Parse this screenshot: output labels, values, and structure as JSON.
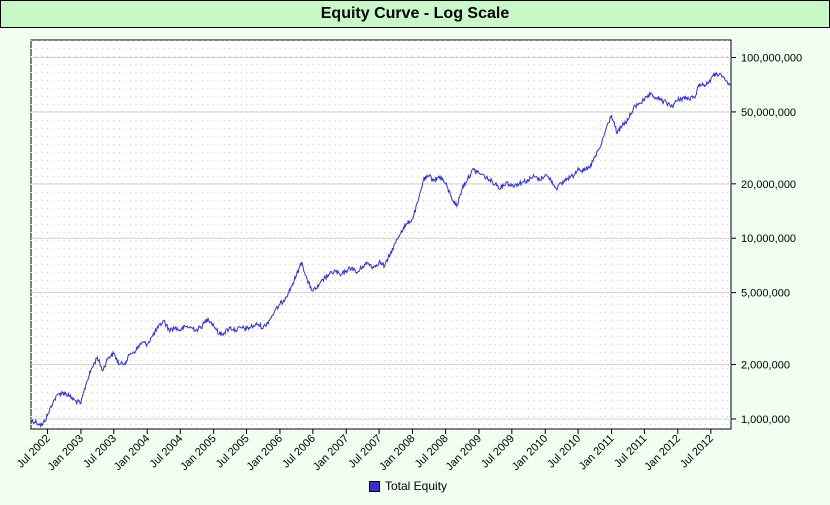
{
  "chart_data": {
    "type": "line",
    "title": "Equity Curve - Log Scale",
    "xlabel": "",
    "ylabel": "",
    "y_scale": "log",
    "ylim": [
      880000,
      125000000
    ],
    "xlim": [
      "2002-04-01",
      "2012-10-20"
    ],
    "grid": true,
    "legend_position": "bottom",
    "colors": {
      "line": "#3333cc",
      "plot_bg": "#ffffff",
      "page_bg": "#f0fff0",
      "title_bg": "#c8f8c8"
    },
    "y_ticks": [
      {
        "value": 1000000,
        "label": "1,000,000"
      },
      {
        "value": 2000000,
        "label": "2,000,000"
      },
      {
        "value": 5000000,
        "label": "5,000,000"
      },
      {
        "value": 10000000,
        "label": "10,000,000"
      },
      {
        "value": 20000000,
        "label": "20,000,000"
      },
      {
        "value": 50000000,
        "label": "50,000,000"
      },
      {
        "value": 100000000,
        "label": "100,000,000"
      }
    ],
    "x_ticks": [
      {
        "date": "2002-07-01",
        "label": "Jul 2002"
      },
      {
        "date": "2003-01-01",
        "label": "Jan 2003"
      },
      {
        "date": "2003-07-01",
        "label": "Jul 2003"
      },
      {
        "date": "2004-01-01",
        "label": "Jan 2004"
      },
      {
        "date": "2004-07-01",
        "label": "Jul 2004"
      },
      {
        "date": "2005-01-01",
        "label": "Jan 2005"
      },
      {
        "date": "2005-07-01",
        "label": "Jul 2005"
      },
      {
        "date": "2006-01-01",
        "label": "Jan 2006"
      },
      {
        "date": "2006-07-01",
        "label": "Jul 2006"
      },
      {
        "date": "2007-01-01",
        "label": "Jan 2007"
      },
      {
        "date": "2007-07-01",
        "label": "Jul 2007"
      },
      {
        "date": "2008-01-01",
        "label": "Jan 2008"
      },
      {
        "date": "2008-07-01",
        "label": "Jul 2008"
      },
      {
        "date": "2009-01-01",
        "label": "Jan 2009"
      },
      {
        "date": "2009-07-01",
        "label": "Jul 2009"
      },
      {
        "date": "2010-01-01",
        "label": "Jan 2010"
      },
      {
        "date": "2010-07-01",
        "label": "Jul 2010"
      },
      {
        "date": "2011-01-01",
        "label": "Jan 2011"
      },
      {
        "date": "2011-07-01",
        "label": "Jul 2011"
      },
      {
        "date": "2012-01-01",
        "label": "Jan 2012"
      },
      {
        "date": "2012-07-01",
        "label": "Jul 2012"
      }
    ],
    "series": [
      {
        "name": "Total Equity",
        "points": [
          [
            "2002-04-01",
            980000
          ],
          [
            "2002-05-01",
            960000
          ],
          [
            "2002-06-01",
            920000
          ],
          [
            "2002-07-01",
            1050000
          ],
          [
            "2002-08-01",
            1250000
          ],
          [
            "2002-09-01",
            1380000
          ],
          [
            "2002-10-01",
            1400000
          ],
          [
            "2002-11-01",
            1330000
          ],
          [
            "2002-12-01",
            1260000
          ],
          [
            "2003-01-01",
            1220000
          ],
          [
            "2003-02-01",
            1600000
          ],
          [
            "2003-03-01",
            1900000
          ],
          [
            "2003-04-01",
            2200000
          ],
          [
            "2003-05-01",
            1850000
          ],
          [
            "2003-06-01",
            2200000
          ],
          [
            "2003-07-01",
            2300000
          ],
          [
            "2003-08-01",
            2000000
          ],
          [
            "2003-09-01",
            2050000
          ],
          [
            "2003-10-01",
            2300000
          ],
          [
            "2003-11-01",
            2400000
          ],
          [
            "2003-12-01",
            2650000
          ],
          [
            "2004-01-01",
            2600000
          ],
          [
            "2004-02-01",
            2900000
          ],
          [
            "2004-03-01",
            3200000
          ],
          [
            "2004-04-01",
            3500000
          ],
          [
            "2004-05-01",
            3100000
          ],
          [
            "2004-06-01",
            3200000
          ],
          [
            "2004-07-01",
            3100000
          ],
          [
            "2004-08-01",
            3250000
          ],
          [
            "2004-09-01",
            3200000
          ],
          [
            "2004-10-01",
            3100000
          ],
          [
            "2004-11-01",
            3300000
          ],
          [
            "2004-12-01",
            3600000
          ],
          [
            "2005-01-01",
            3300000
          ],
          [
            "2005-02-01",
            2950000
          ],
          [
            "2005-03-01",
            3000000
          ],
          [
            "2005-04-01",
            3200000
          ],
          [
            "2005-05-01",
            3100000
          ],
          [
            "2005-06-01",
            3200000
          ],
          [
            "2005-07-01",
            3150000
          ],
          [
            "2005-08-01",
            3250000
          ],
          [
            "2005-09-01",
            3350000
          ],
          [
            "2005-10-01",
            3200000
          ],
          [
            "2005-11-01",
            3500000
          ],
          [
            "2005-12-01",
            3900000
          ],
          [
            "2006-01-01",
            4300000
          ],
          [
            "2006-02-01",
            4700000
          ],
          [
            "2006-03-01",
            5300000
          ],
          [
            "2006-04-01",
            6200000
          ],
          [
            "2006-05-01",
            7400000
          ],
          [
            "2006-06-01",
            5800000
          ],
          [
            "2006-07-01",
            5100000
          ],
          [
            "2006-08-01",
            5400000
          ],
          [
            "2006-09-01",
            6000000
          ],
          [
            "2006-10-01",
            6300000
          ],
          [
            "2006-11-01",
            6600000
          ],
          [
            "2006-12-01",
            6200000
          ],
          [
            "2007-01-01",
            6600000
          ],
          [
            "2007-02-01",
            6900000
          ],
          [
            "2007-03-01",
            6400000
          ],
          [
            "2007-04-01",
            7000000
          ],
          [
            "2007-05-01",
            7300000
          ],
          [
            "2007-06-01",
            6900000
          ],
          [
            "2007-07-01",
            7400000
          ],
          [
            "2007-08-01",
            7000000
          ],
          [
            "2007-09-01",
            8200000
          ],
          [
            "2007-10-01",
            9500000
          ],
          [
            "2007-11-01",
            11000000
          ],
          [
            "2007-12-01",
            12000000
          ],
          [
            "2008-01-01",
            12800000
          ],
          [
            "2008-02-01",
            16000000
          ],
          [
            "2008-03-01",
            21000000
          ],
          [
            "2008-04-01",
            22000000
          ],
          [
            "2008-05-01",
            21000000
          ],
          [
            "2008-06-01",
            22000000
          ],
          [
            "2008-07-01",
            20000000
          ],
          [
            "2008-08-01",
            17000000
          ],
          [
            "2008-09-01",
            15000000
          ],
          [
            "2008-10-01",
            19000000
          ],
          [
            "2008-11-01",
            21500000
          ],
          [
            "2008-12-01",
            24000000
          ],
          [
            "2009-01-01",
            23000000
          ],
          [
            "2009-02-01",
            22000000
          ],
          [
            "2009-03-01",
            21000000
          ],
          [
            "2009-04-01",
            20000000
          ],
          [
            "2009-05-01",
            19000000
          ],
          [
            "2009-06-01",
            20500000
          ],
          [
            "2009-07-01",
            19500000
          ],
          [
            "2009-08-01",
            20000000
          ],
          [
            "2009-09-01",
            20500000
          ],
          [
            "2009-10-01",
            21000000
          ],
          [
            "2009-11-01",
            22000000
          ],
          [
            "2009-12-01",
            21000000
          ],
          [
            "2010-01-01",
            22500000
          ],
          [
            "2010-02-01",
            21000000
          ],
          [
            "2010-03-01",
            19000000
          ],
          [
            "2010-04-01",
            20000000
          ],
          [
            "2010-05-01",
            21500000
          ],
          [
            "2010-06-01",
            22000000
          ],
          [
            "2010-07-01",
            24500000
          ],
          [
            "2010-08-01",
            23500000
          ],
          [
            "2010-09-01",
            24500000
          ],
          [
            "2010-10-01",
            28000000
          ],
          [
            "2010-11-01",
            32000000
          ],
          [
            "2010-12-01",
            40000000
          ],
          [
            "2011-01-01",
            48000000
          ],
          [
            "2011-02-01",
            38000000
          ],
          [
            "2011-03-01",
            42000000
          ],
          [
            "2011-04-01",
            45000000
          ],
          [
            "2011-05-01",
            52000000
          ],
          [
            "2011-06-01",
            56000000
          ],
          [
            "2011-07-01",
            58000000
          ],
          [
            "2011-08-01",
            62000000
          ],
          [
            "2011-09-01",
            60000000
          ],
          [
            "2011-10-01",
            58000000
          ],
          [
            "2011-11-01",
            56000000
          ],
          [
            "2011-12-01",
            54000000
          ],
          [
            "2012-01-01",
            58000000
          ],
          [
            "2012-02-01",
            60000000
          ],
          [
            "2012-03-01",
            59000000
          ],
          [
            "2012-04-01",
            60000000
          ],
          [
            "2012-05-01",
            72000000
          ],
          [
            "2012-06-01",
            70000000
          ],
          [
            "2012-07-01",
            76000000
          ],
          [
            "2012-08-01",
            82000000
          ],
          [
            "2012-09-01",
            78000000
          ],
          [
            "2012-10-15",
            70000000
          ]
        ]
      }
    ]
  }
}
